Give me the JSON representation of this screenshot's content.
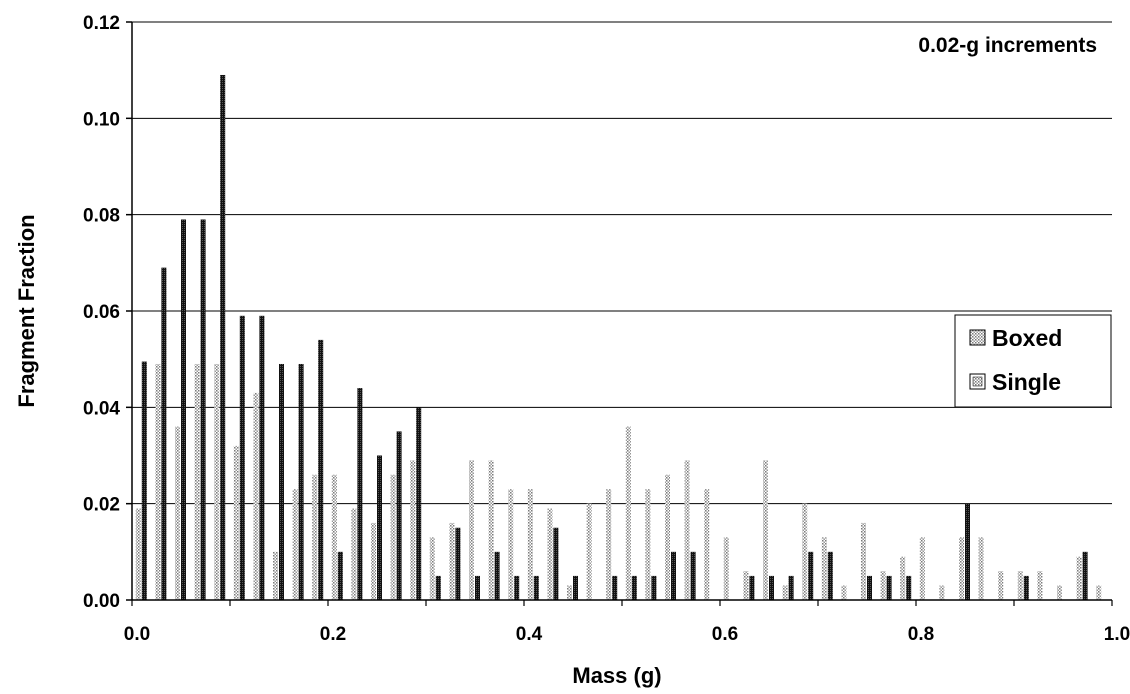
{
  "chart_data": {
    "type": "bar",
    "title": "",
    "annotation": "0.02-g increments",
    "xlabel": "Mass (g)",
    "ylabel": "Fragment Fraction",
    "xlim": [
      0.0,
      1.0
    ],
    "ylim": [
      0.0,
      0.12
    ],
    "x_ticks": [
      "0.0",
      "0.2",
      "0.4",
      "0.6",
      "0.8",
      "1.0"
    ],
    "y_ticks": [
      "0.00",
      "0.02",
      "0.04",
      "0.06",
      "0.08",
      "0.10",
      "0.12"
    ],
    "grid": "horizontal",
    "legend_position": "right",
    "colors": {
      "boxed": "#c8c8c8",
      "single": "#111111",
      "grid": "#000000"
    },
    "x": [
      0.01,
      0.03,
      0.05,
      0.07,
      0.09,
      0.11,
      0.13,
      0.15,
      0.17,
      0.19,
      0.21,
      0.23,
      0.25,
      0.27,
      0.29,
      0.31,
      0.33,
      0.35,
      0.37,
      0.39,
      0.41,
      0.43,
      0.45,
      0.47,
      0.49,
      0.51,
      0.53,
      0.55,
      0.57,
      0.59,
      0.61,
      0.63,
      0.65,
      0.67,
      0.69,
      0.71,
      0.73,
      0.75,
      0.77,
      0.79,
      0.81,
      0.83,
      0.85,
      0.87,
      0.89,
      0.91,
      0.93,
      0.95,
      0.97,
      0.99
    ],
    "series": [
      {
        "name": "Boxed",
        "values": [
          0.019,
          0.049,
          0.036,
          0.049,
          0.049,
          0.032,
          0.043,
          0.01,
          0.023,
          0.026,
          0.026,
          0.019,
          0.016,
          0.026,
          0.029,
          0.013,
          0.016,
          0.029,
          0.029,
          0.023,
          0.023,
          0.019,
          0.003,
          0.02,
          0.023,
          0.036,
          0.023,
          0.026,
          0.029,
          0.023,
          0.013,
          0.006,
          0.029,
          0.003,
          0.02,
          0.013,
          0.003,
          0.016,
          0.006,
          0.009,
          0.013,
          0.003,
          0.013,
          0.013,
          0.006,
          0.006,
          0.006,
          0.003,
          0.009,
          0.003
        ]
      },
      {
        "name": "Single",
        "values": [
          0.0495,
          0.069,
          0.079,
          0.079,
          0.109,
          0.059,
          0.059,
          0.049,
          0.049,
          0.054,
          0.01,
          0.044,
          0.03,
          0.035,
          0.04,
          0.005,
          0.015,
          0.005,
          0.01,
          0.005,
          0.005,
          0.015,
          0.005,
          0.0,
          0.005,
          0.005,
          0.005,
          0.01,
          0.01,
          0.0,
          0.0,
          0.005,
          0.005,
          0.005,
          0.01,
          0.01,
          0.0,
          0.005,
          0.005,
          0.005,
          0.0,
          0.0,
          0.02,
          0.0,
          0.0,
          0.005,
          0.0,
          0.0,
          0.01,
          0.0
        ]
      }
    ]
  }
}
